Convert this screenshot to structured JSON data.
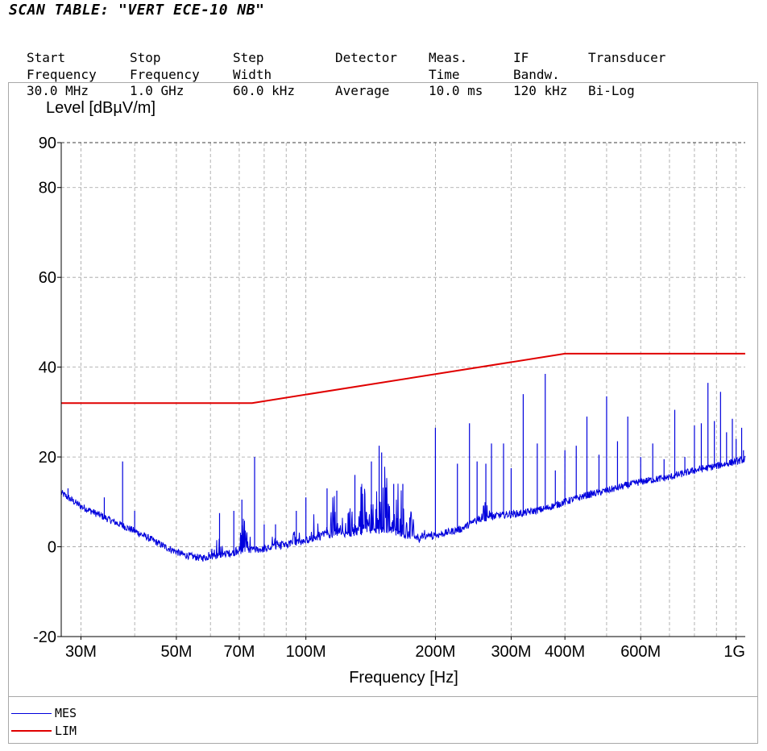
{
  "header": {
    "title": "SCAN TABLE: \"VERT ECE-10 NB\"",
    "columns": [
      {
        "line1": "Start",
        "line2": "Frequency",
        "value": "30.0 MHz"
      },
      {
        "line1": "Stop",
        "line2": "Frequency",
        "value": "1.0 GHz"
      },
      {
        "line1": "Step",
        "line2": "Width",
        "value": "60.0 kHz"
      },
      {
        "line1": "Detector",
        "line2": "",
        "value": "Average"
      },
      {
        "line1": "Meas.",
        "line2": "Time",
        "value": "10.0 ms"
      },
      {
        "line1": "IF",
        "line2": "Bandw.",
        "value": "120 kHz"
      },
      {
        "line1": "Transducer",
        "line2": "",
        "value": "Bi-Log"
      }
    ]
  },
  "colors": {
    "mes": "#0000dd",
    "lim": "#e00000",
    "grid": "#a0a0a0",
    "frame": "#a8a8a8"
  },
  "chart_data": {
    "type": "line",
    "ylabel": "Level [dBµV/m]",
    "xlabel": "Frequency [Hz]",
    "x_scale": "log",
    "xlim": [
      27000000,
      1050000000
    ],
    "ylim": [
      -20,
      90
    ],
    "y_ticks": [
      -20,
      0,
      20,
      40,
      60,
      80,
      90
    ],
    "x_ticks": [
      {
        "value": 30000000,
        "label": "30M"
      },
      {
        "value": 50000000,
        "label": "50M"
      },
      {
        "value": 70000000,
        "label": "70M"
      },
      {
        "value": 100000000,
        "label": "100M"
      },
      {
        "value": 200000000,
        "label": "200M"
      },
      {
        "value": 300000000,
        "label": "300M"
      },
      {
        "value": 400000000,
        "label": "400M"
      },
      {
        "value": 600000000,
        "label": "600M"
      },
      {
        "value": 1000000000,
        "label": "1G"
      }
    ],
    "x_grid": [
      30000000,
      40000000,
      50000000,
      60000000,
      70000000,
      80000000,
      90000000,
      100000000,
      200000000,
      300000000,
      400000000,
      500000000,
      600000000,
      700000000,
      800000000,
      900000000,
      1000000000
    ],
    "y_grid": [
      -20,
      0,
      20,
      40,
      60,
      80,
      90
    ],
    "grid": true,
    "legend_position": "bottom-left",
    "series": [
      {
        "name": "MES",
        "color": "#0000dd",
        "baseline": [
          [
            27000000,
            12
          ],
          [
            30000000,
            9
          ],
          [
            35000000,
            6
          ],
          [
            40000000,
            3.5
          ],
          [
            44000000,
            1.5
          ],
          [
            47000000,
            0
          ],
          [
            52000000,
            -1.8
          ],
          [
            57000000,
            -2.5
          ],
          [
            62000000,
            -2
          ],
          [
            70000000,
            -1
          ],
          [
            80000000,
            -0.5
          ],
          [
            90000000,
            0.5
          ],
          [
            100000000,
            1.5
          ],
          [
            110000000,
            2.5
          ],
          [
            125000000,
            3
          ],
          [
            140000000,
            3.5
          ],
          [
            160000000,
            3.5
          ],
          [
            170000000,
            2.5
          ],
          [
            180000000,
            1.5
          ],
          [
            200000000,
            2.5
          ],
          [
            230000000,
            4
          ],
          [
            250000000,
            6
          ],
          [
            280000000,
            7
          ],
          [
            320000000,
            7.5
          ],
          [
            360000000,
            8.5
          ],
          [
            400000000,
            10
          ],
          [
            450000000,
            11.5
          ],
          [
            500000000,
            12.5
          ],
          [
            600000000,
            14.5
          ],
          [
            700000000,
            15.5
          ],
          [
            800000000,
            17
          ],
          [
            900000000,
            18
          ],
          [
            1000000000,
            19
          ],
          [
            1050000000,
            19.5
          ]
        ],
        "humps": [
          [
            62000000,
            6
          ],
          [
            72000000,
            8
          ],
          [
            85000000,
            3
          ],
          [
            95000000,
            4
          ],
          [
            105000000,
            9
          ],
          [
            115000000,
            10
          ],
          [
            125000000,
            10
          ],
          [
            135000000,
            12
          ],
          [
            145000000,
            14
          ],
          [
            152000000,
            15
          ],
          [
            165000000,
            12
          ],
          [
            175000000,
            6
          ],
          [
            190000000,
            2
          ],
          [
            260000000,
            4
          ]
        ],
        "spikes": [
          [
            28000000,
            13
          ],
          [
            34000000,
            11
          ],
          [
            37500000,
            19
          ],
          [
            40000000,
            8
          ],
          [
            63000000,
            7.5
          ],
          [
            68000000,
            8
          ],
          [
            71000000,
            10.5
          ],
          [
            76000000,
            20
          ],
          [
            80000000,
            5
          ],
          [
            85000000,
            5
          ],
          [
            95000000,
            8
          ],
          [
            100000000,
            11
          ],
          [
            112000000,
            13
          ],
          [
            118000000,
            12.5
          ],
          [
            130000000,
            16
          ],
          [
            142000000,
            19
          ],
          [
            148000000,
            22.5
          ],
          [
            150000000,
            21
          ],
          [
            160000000,
            14
          ],
          [
            168000000,
            14
          ],
          [
            200000000,
            26.5
          ],
          [
            225000000,
            18.5
          ],
          [
            240000000,
            27.5
          ],
          [
            250000000,
            19
          ],
          [
            262000000,
            18.5
          ],
          [
            270000000,
            23
          ],
          [
            288000000,
            23
          ],
          [
            300000000,
            17.5
          ],
          [
            320000000,
            34
          ],
          [
            345000000,
            23
          ],
          [
            360000000,
            38.5
          ],
          [
            380000000,
            17
          ],
          [
            400000000,
            21.5
          ],
          [
            425000000,
            22.5
          ],
          [
            450000000,
            29
          ],
          [
            480000000,
            20.5
          ],
          [
            500000000,
            33.5
          ],
          [
            530000000,
            23.5
          ],
          [
            560000000,
            29
          ],
          [
            600000000,
            20
          ],
          [
            640000000,
            23
          ],
          [
            680000000,
            19.5
          ],
          [
            720000000,
            30.5
          ],
          [
            760000000,
            20
          ],
          [
            800000000,
            27
          ],
          [
            830000000,
            27.5
          ],
          [
            860000000,
            36.5
          ],
          [
            890000000,
            28
          ],
          [
            920000000,
            34.5
          ],
          [
            950000000,
            25.5
          ],
          [
            980000000,
            28.5
          ],
          [
            1000000000,
            24
          ],
          [
            1030000000,
            26.5
          ],
          [
            1040000000,
            21.5
          ]
        ]
      },
      {
        "name": "LIM",
        "color": "#e00000",
        "points": [
          [
            27000000,
            32
          ],
          [
            75000000,
            32
          ],
          [
            400000000,
            43
          ],
          [
            1050000000,
            43
          ]
        ]
      }
    ]
  }
}
